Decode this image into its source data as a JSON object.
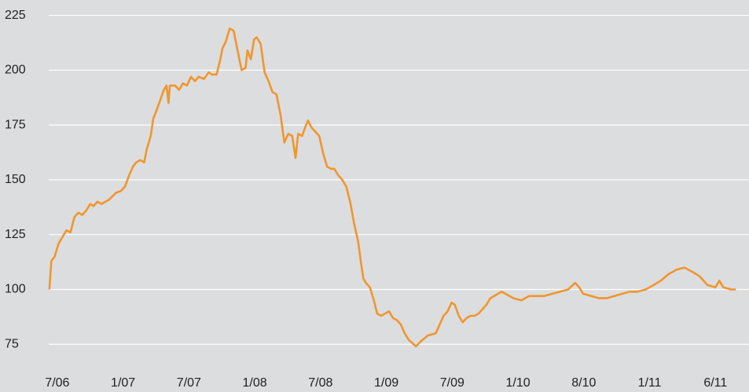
{
  "chart_data": {
    "type": "line",
    "xlim": [
      -1.3,
      105.1
    ],
    "xticks": [
      {
        "value": 0,
        "label": "7/06"
      },
      {
        "value": 10,
        "label": "1/07"
      },
      {
        "value": 20,
        "label": "7/07"
      },
      {
        "value": 30,
        "label": "1/08"
      },
      {
        "value": 40,
        "label": "7/08"
      },
      {
        "value": 50,
        "label": "1/09"
      },
      {
        "value": 60,
        "label": "7/09"
      },
      {
        "value": 70,
        "label": "1/10"
      },
      {
        "value": 80,
        "label": "8/10"
      },
      {
        "value": 90,
        "label": "1/11"
      },
      {
        "value": 100,
        "label": "6/11"
      }
    ],
    "ylim": [
      69,
      232
    ],
    "yticks": [
      75,
      100,
      125,
      150,
      175,
      200,
      225
    ],
    "grid": true,
    "x": [
      -1.2,
      -0.9,
      -0.4,
      0.2,
      0.8,
      1.4,
      2.0,
      2.6,
      3.2,
      3.8,
      4.4,
      5.0,
      5.5,
      6.1,
      6.7,
      7.9,
      8.9,
      9.7,
      10.3,
      10.9,
      11.5,
      12.0,
      12.6,
      13.2,
      13.6,
      14.2,
      14.6,
      15.0,
      15.6,
      16.2,
      16.6,
      16.9,
      17.1,
      17.9,
      18.5,
      19.1,
      19.7,
      20.3,
      20.9,
      21.5,
      22.3,
      23.0,
      23.5,
      24.2,
      24.7,
      25.1,
      25.6,
      26.2,
      26.8,
      27.4,
      28.0,
      28.6,
      28.9,
      29.4,
      29.9,
      30.3,
      30.9,
      31.5,
      32.1,
      32.7,
      33.3,
      33.9,
      34.5,
      35.1,
      35.7,
      36.2,
      36.6,
      37.2,
      37.8,
      38.1,
      38.6,
      39.2,
      39.8,
      40.4,
      41.0,
      41.6,
      42.1,
      42.7,
      43.3,
      43.9,
      44.5,
      45.1,
      45.7,
      46.2,
      46.5,
      46.9,
      47.5,
      48.1,
      48.6,
      49.2,
      49.8,
      50.4,
      51.0,
      51.6,
      52.2,
      52.8,
      53.4,
      54.5,
      55.1,
      56.3,
      57.5,
      58.1,
      58.7,
      59.3,
      59.9,
      60.4,
      61.0,
      61.6,
      62.2,
      62.8,
      63.4,
      64.0,
      64.6,
      65.2,
      65.8,
      66.4,
      67.5,
      68.1,
      69.3,
      70.5,
      71.7,
      72.8,
      74.0,
      75.2,
      76.4,
      77.6,
      78.7,
      79.3,
      79.9,
      81.1,
      82.3,
      83.5,
      84.7,
      85.8,
      87.0,
      88.2,
      89.4,
      90.6,
      91.7,
      92.9,
      94.1,
      95.3,
      96.5,
      97.6,
      98.8,
      100.0,
      100.6,
      101.2,
      102.4,
      103.1
    ],
    "series": [
      {
        "color": "#f0962d",
        "values": [
          100,
          113,
          115,
          121,
          124,
          127,
          126,
          133,
          135,
          134,
          136,
          139,
          138,
          140,
          139,
          141,
          144,
          145,
          147,
          152,
          156,
          158,
          159,
          158,
          164,
          170,
          178,
          181,
          186,
          191,
          193,
          185,
          193,
          193,
          191,
          194,
          193,
          197,
          195,
          197,
          196,
          199,
          198,
          198,
          204,
          210,
          213,
          219,
          218,
          209,
          200,
          201,
          209,
          205,
          214,
          215,
          212,
          199,
          195,
          190,
          189,
          180,
          167,
          171,
          170,
          160,
          171,
          170,
          175,
          177,
          174,
          172,
          170,
          162,
          156,
          155,
          155,
          152,
          150,
          147,
          140,
          130,
          122,
          111,
          105,
          103,
          101,
          95,
          89,
          88,
          89,
          90,
          87,
          86,
          84,
          80,
          77,
          74,
          76,
          79,
          80,
          84,
          88,
          90,
          94,
          93,
          88,
          85,
          87,
          88,
          88,
          89,
          91,
          93,
          96,
          97,
          99,
          98,
          96,
          95,
          97,
          97,
          97,
          98,
          99,
          100,
          103,
          101,
          98,
          97,
          96,
          96,
          97,
          98,
          99,
          99,
          100,
          102,
          104,
          107,
          109,
          110,
          108,
          106,
          102,
          101,
          104,
          101,
          100,
          100
        ]
      }
    ]
  }
}
